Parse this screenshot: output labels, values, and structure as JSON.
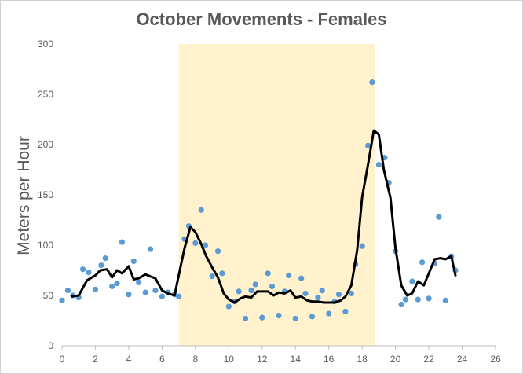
{
  "chart_data": {
    "type": "scatter",
    "title": "October Movements - Females",
    "xlabel": "",
    "ylabel": "Meters per Hour",
    "xlim": [
      0,
      26
    ],
    "ylim": [
      0,
      300
    ],
    "xticks": [
      0,
      2,
      4,
      6,
      8,
      10,
      12,
      14,
      16,
      18,
      20,
      22,
      24,
      26
    ],
    "yticks": [
      0,
      50,
      100,
      150,
      200,
      250,
      300
    ],
    "grid": false,
    "legend": "none",
    "shaded_region": {
      "x_start": 7.0,
      "x_end": 18.75,
      "color": "#fff2cc"
    },
    "colors": {
      "points": "#5b9bd5",
      "line": "#000000",
      "axis": "#bfbfbf",
      "text": "#595959"
    },
    "series": [
      {
        "type": "scatter",
        "x": [
          0.0,
          0.35,
          0.65,
          1.0,
          1.25,
          1.6,
          2.0,
          2.35,
          2.6,
          3.0,
          3.3,
          3.6,
          4.0,
          4.3,
          4.6,
          5.0,
          5.3,
          5.6,
          6.0,
          6.35,
          6.75,
          7.0,
          7.35,
          7.6,
          8.0,
          8.35,
          8.6,
          9.0,
          9.35,
          9.6,
          10.0,
          10.35,
          10.6,
          11.0,
          11.35,
          11.6,
          12.0,
          12.35,
          12.6,
          13.0,
          13.35,
          13.6,
          14.0,
          14.35,
          14.6,
          15.0,
          15.35,
          15.6,
          16.0,
          16.35,
          16.6,
          17.0,
          17.35,
          17.6,
          18.0,
          18.35,
          18.6,
          19.0,
          19.35,
          19.6,
          20.0,
          20.35,
          20.6,
          21.0,
          21.35,
          21.6,
          22.0,
          22.35,
          22.6,
          23.0,
          23.35,
          23.6
        ],
        "y": [
          45,
          55,
          50,
          48,
          76,
          73,
          56,
          80,
          87,
          59,
          62,
          103,
          51,
          84,
          63,
          53,
          96,
          55,
          49,
          53,
          51,
          49,
          106,
          119,
          102,
          135,
          100,
          69,
          94,
          72,
          39,
          44,
          54,
          27,
          55,
          61,
          28,
          72,
          59,
          30,
          54,
          70,
          27,
          67,
          52,
          29,
          48,
          55,
          32,
          44,
          51,
          34,
          52,
          81,
          99,
          199,
          262,
          180,
          187,
          162,
          94,
          41,
          46,
          64,
          46,
          83,
          47,
          82,
          128,
          45,
          89,
          75
        ]
      },
      {
        "type": "line",
        "name": "",
        "x": [
          0.6,
          1.0,
          1.5,
          2.0,
          2.3,
          2.7,
          3.0,
          3.3,
          3.6,
          4.0,
          4.3,
          4.6,
          5.0,
          5.3,
          5.6,
          6.0,
          6.35,
          6.75,
          7.0,
          7.35,
          7.7,
          8.0,
          8.35,
          8.65,
          9.0,
          9.35,
          9.7,
          10.0,
          10.35,
          10.7,
          11.0,
          11.35,
          11.7,
          12.0,
          12.35,
          12.7,
          13.0,
          13.35,
          13.7,
          14.0,
          14.35,
          14.7,
          15.0,
          15.35,
          15.7,
          16.0,
          16.35,
          16.7,
          17.0,
          17.35,
          17.7,
          18.0,
          18.35,
          18.7,
          19.0,
          19.3,
          19.7,
          20.0,
          20.35,
          20.7,
          21.0,
          21.35,
          21.7,
          22.0,
          22.35,
          22.7,
          23.0,
          23.35,
          23.6
        ],
        "y": [
          49,
          50,
          65,
          70,
          75,
          76,
          68,
          75,
          72,
          79,
          66,
          67,
          71,
          69,
          67,
          55,
          52,
          50,
          70,
          97,
          118,
          113,
          101,
          89,
          78,
          68,
          52,
          46,
          43,
          47,
          49,
          48,
          54,
          54,
          54,
          50,
          53,
          52,
          55,
          48,
          49,
          45,
          44,
          44,
          43,
          43,
          43,
          45,
          49,
          60,
          95,
          148,
          180,
          214,
          210,
          175,
          147,
          97,
          60,
          50,
          52,
          64,
          60,
          72,
          86,
          87,
          86,
          89,
          70
        ]
      }
    ]
  }
}
